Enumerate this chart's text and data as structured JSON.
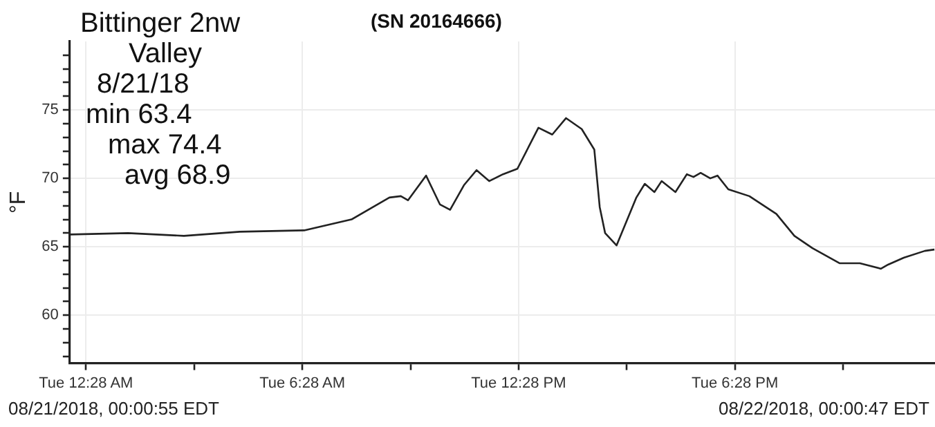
{
  "chart_data": {
    "type": "line",
    "title": "(SN 20164666)",
    "ylabel": "°F",
    "annotations": [
      "Bittinger 2nw",
      "Valley",
      "8/21/18",
      "min 63.4",
      "max 74.4",
      "avg 68.9",
      "08/21/2018, 00:00:55 EDT",
      "08/22/2018, 00:00:47 EDT"
    ],
    "x": [
      "2018-08-21T00:01",
      "2018-08-21T01:38",
      "2018-08-21T03:11",
      "2018-08-21T04:44",
      "2018-08-21T06:31",
      "2018-08-21T07:50",
      "2018-08-21T08:53",
      "2018-08-21T09:12",
      "2018-08-21T09:24",
      "2018-08-21T09:54",
      "2018-08-21T10:17",
      "2018-08-21T10:34",
      "2018-08-21T10:57",
      "2018-08-21T11:18",
      "2018-08-21T11:39",
      "2018-08-21T12:02",
      "2018-08-21T12:26",
      "2018-08-21T13:01",
      "2018-08-21T13:24",
      "2018-08-21T13:47",
      "2018-08-21T14:13",
      "2018-08-21T14:34",
      "2018-08-21T14:43",
      "2018-08-21T14:52",
      "2018-08-21T15:11",
      "2018-08-21T15:44",
      "2018-08-21T15:58",
      "2018-08-21T16:14",
      "2018-08-21T16:26",
      "2018-08-21T16:49",
      "2018-08-21T17:08",
      "2018-08-21T17:19",
      "2018-08-21T17:31",
      "2018-08-21T17:47",
      "2018-08-21T17:59",
      "2018-08-21T18:17",
      "2018-08-21T18:52",
      "2018-08-21T19:37",
      "2018-08-21T20:07",
      "2018-08-21T20:37",
      "2018-08-21T21:22",
      "2018-08-21T21:56",
      "2018-08-21T22:31",
      "2018-08-21T22:43",
      "2018-08-21T23:09",
      "2018-08-21T23:44",
      "2018-08-22T00:00"
    ],
    "series": [
      {
        "color": "#222222",
        "values": [
          65.9,
          66.0,
          65.8,
          66.1,
          66.2,
          67.0,
          68.6,
          68.7,
          68.4,
          70.2,
          68.1,
          67.7,
          69.5,
          70.6,
          69.8,
          70.3,
          70.7,
          73.7,
          73.2,
          74.4,
          73.6,
          72.1,
          67.9,
          66.0,
          65.1,
          68.6,
          69.6,
          69.0,
          69.8,
          69.0,
          70.3,
          70.1,
          70.4,
          70.0,
          70.2,
          69.2,
          68.7,
          67.4,
          65.8,
          64.9,
          63.8,
          63.8,
          63.4,
          63.7,
          64.2,
          64.7,
          64.8
        ]
      }
    ],
    "xlim": [
      "2018-08-21T00:01",
      "2018-08-22T00:01"
    ],
    "xticks": [
      {
        "value": "2018-08-21T00:28",
        "label": "Tue 12:28 AM"
      },
      {
        "value": "2018-08-21T03:28",
        "label": null
      },
      {
        "value": "2018-08-21T06:28",
        "label": "Tue 6:28 AM"
      },
      {
        "value": "2018-08-21T09:28",
        "label": null
      },
      {
        "value": "2018-08-21T12:28",
        "label": "Tue 12:28 PM"
      },
      {
        "value": "2018-08-21T15:28",
        "label": null
      },
      {
        "value": "2018-08-21T18:28",
        "label": "Tue 6:28 PM"
      },
      {
        "value": "2018-08-21T21:28",
        "label": null
      }
    ],
    "ylim": [
      56.5,
      80
    ],
    "yticks": [
      {
        "value": 57,
        "label": null
      },
      {
        "value": 58,
        "label": null
      },
      {
        "value": 59,
        "label": null
      },
      60,
      {
        "value": 61,
        "label": null
      },
      {
        "value": 62,
        "label": null
      },
      {
        "value": 63,
        "label": null
      },
      {
        "value": 64,
        "label": null
      },
      65,
      {
        "value": 66,
        "label": null
      },
      {
        "value": 67,
        "label": null
      },
      {
        "value": 68,
        "label": null
      },
      {
        "value": 69,
        "label": null
      },
      70,
      {
        "value": 71,
        "label": null
      },
      {
        "value": 72,
        "label": null
      },
      {
        "value": 73,
        "label": null
      },
      {
        "value": 74,
        "label": null
      },
      75,
      {
        "value": 76,
        "label": null
      },
      {
        "value": 77,
        "label": null
      },
      {
        "value": 78,
        "label": null
      },
      {
        "value": 79,
        "label": null
      }
    ],
    "grid": true,
    "legend": false,
    "marker": "none",
    "line_style": "solid"
  }
}
